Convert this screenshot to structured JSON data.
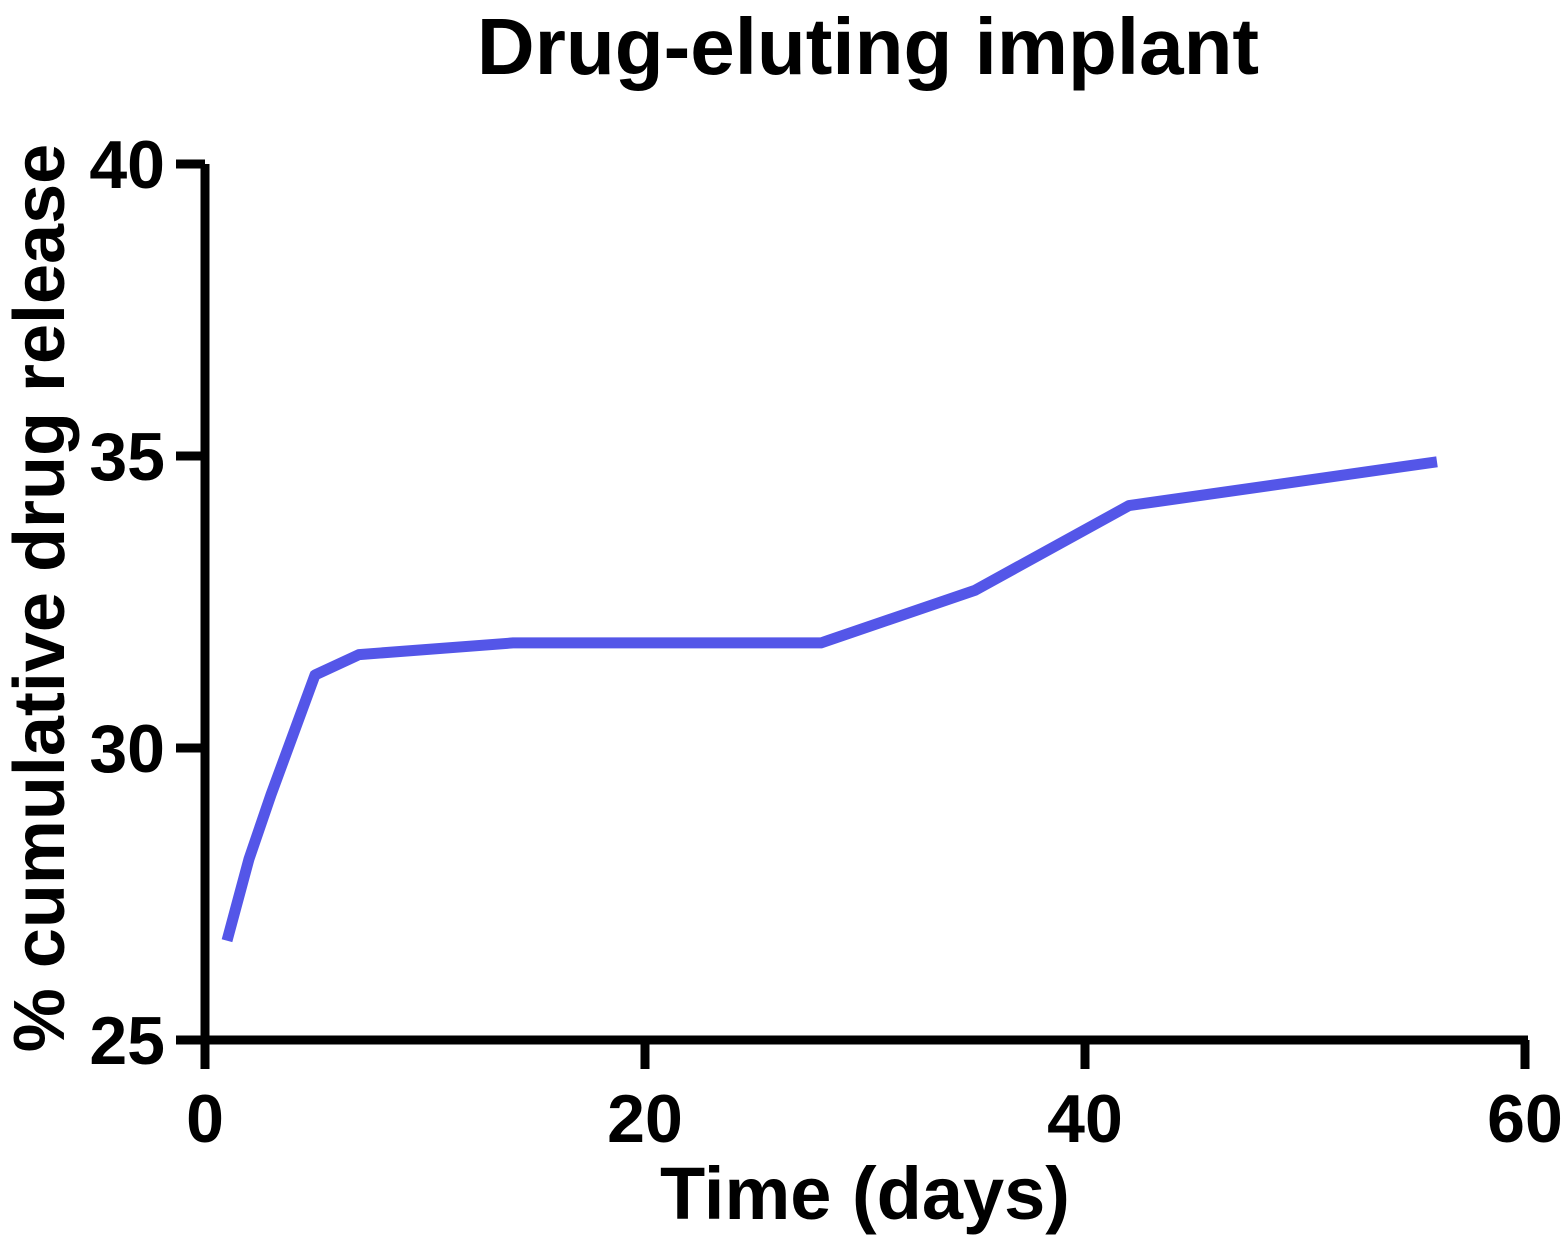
{
  "chart_data": {
    "type": "line",
    "title": "Drug-eluting implant",
    "xlabel": "Time (days)",
    "ylabel": "% cumulative drug release",
    "x": [
      1,
      2,
      3,
      5,
      7,
      14,
      28,
      35,
      42,
      56
    ],
    "y": [
      26.7,
      28.1,
      29.2,
      31.25,
      31.6,
      31.8,
      31.8,
      32.7,
      34.15,
      34.9
    ],
    "xlim": [
      0,
      60
    ],
    "ylim": [
      25,
      40
    ],
    "x_ticks": [
      "0",
      "20",
      "40",
      "60"
    ],
    "y_ticks": [
      "25",
      "30",
      "35",
      "40"
    ],
    "grid": false,
    "legend": null,
    "line_color": "#5456E8",
    "axis_color": "#000000"
  }
}
